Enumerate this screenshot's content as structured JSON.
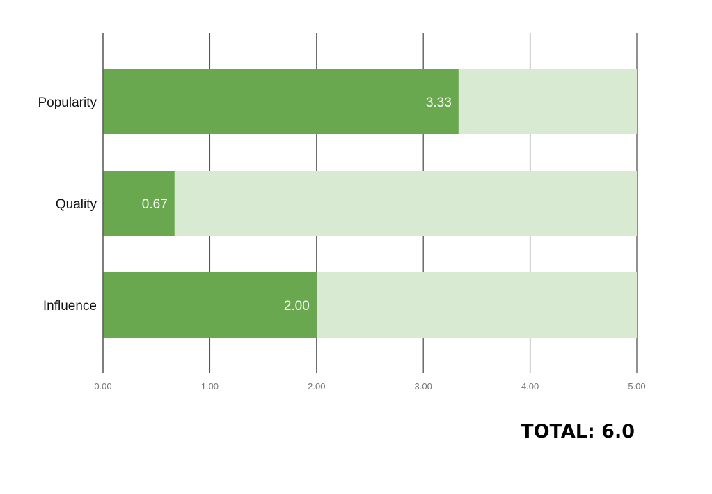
{
  "chart_data": {
    "type": "bar",
    "orientation": "horizontal",
    "stacked": true,
    "categories": [
      "Popularity",
      "Quality",
      "Influence"
    ],
    "values": [
      3.33,
      0.67,
      2.0
    ],
    "value_labels": [
      "3.33",
      "0.67",
      "2.00"
    ],
    "max_values": [
      5,
      5,
      5
    ],
    "xlim": [
      0,
      5
    ],
    "x_ticks": [
      0,
      1,
      2,
      3,
      4,
      5
    ],
    "x_tick_labels": [
      "0.00",
      "1.00",
      "2.00",
      "3.00",
      "4.00",
      "5.00"
    ],
    "grid": true,
    "colors": {
      "value": "#6aa84f",
      "remainder": "#d9ead3",
      "grid": "#555555"
    }
  },
  "total_label": "TOTAL: 6.0"
}
